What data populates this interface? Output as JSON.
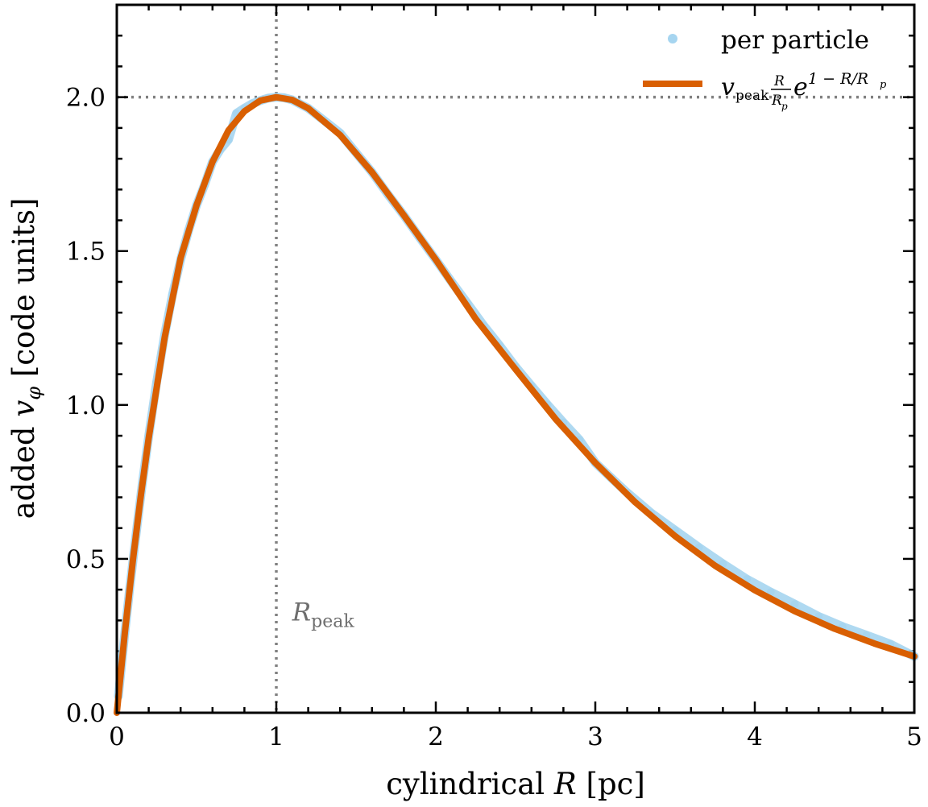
{
  "chart_data": {
    "type": "line",
    "title": "",
    "xlabel": "cylindrical R [pc]",
    "ylabel": "added v_φ [code units]",
    "xlim": [
      0,
      5
    ],
    "ylim": [
      0,
      2.3
    ],
    "x_ticks": [
      0,
      1,
      2,
      3,
      4,
      5
    ],
    "x_tick_labels": [
      "0",
      "1",
      "2",
      "3",
      "4",
      "5"
    ],
    "y_ticks": [
      0.0,
      0.5,
      1.0,
      1.5,
      2.0
    ],
    "y_tick_labels": [
      "0.0",
      "0.5",
      "1.0",
      "1.5",
      "2.0"
    ],
    "grid": false,
    "legend_position": "top-right",
    "model": {
      "v_peak": 2.0,
      "R_peak": 1.0
    },
    "series": [
      {
        "name": "per particle",
        "style": "scatter",
        "color": "#a6d5f0",
        "x": [
          0.01,
          0.03,
          0.05,
          0.08,
          0.12,
          0.16,
          0.2,
          0.25,
          0.3,
          0.35,
          0.4,
          0.45,
          0.5,
          0.55,
          0.6,
          0.65,
          0.7,
          0.75,
          0.8,
          0.85,
          0.9,
          0.95,
          1.0,
          1.05,
          1.1,
          1.2,
          1.3,
          1.4,
          1.5,
          1.6,
          1.7,
          1.8,
          1.9,
          2.0,
          2.1,
          2.2,
          2.3,
          2.4,
          2.5,
          2.6,
          2.7,
          2.8,
          2.9,
          3.0,
          3.1,
          3.2,
          3.35,
          3.5,
          3.65,
          3.8,
          3.95,
          4.1,
          4.25,
          4.4,
          4.55,
          4.7,
          4.85,
          5.0
        ],
        "y": [
          0.054,
          0.157,
          0.258,
          0.4,
          0.577,
          0.745,
          0.899,
          1.075,
          1.228,
          1.36,
          1.472,
          1.567,
          1.649,
          1.715,
          1.79,
          1.831,
          1.862,
          1.947,
          1.964,
          1.979,
          1.989,
          1.997,
          2.0,
          1.998,
          1.991,
          1.964,
          1.924,
          1.883,
          1.819,
          1.756,
          1.684,
          1.616,
          1.543,
          1.472,
          1.399,
          1.329,
          1.258,
          1.193,
          1.124,
          1.062,
          1.001,
          0.943,
          0.887,
          0.812,
          0.763,
          0.715,
          0.649,
          0.593,
          0.537,
          0.484,
          0.434,
          0.392,
          0.353,
          0.313,
          0.28,
          0.252,
          0.223,
          0.183
        ]
      },
      {
        "name": "v_peak (R/R_p) e^(1 − R/R_p)",
        "style": "line",
        "color": "#d95f02",
        "x": [
          0,
          0.05,
          0.1,
          0.15,
          0.2,
          0.3,
          0.4,
          0.5,
          0.6,
          0.7,
          0.8,
          0.9,
          1.0,
          1.1,
          1.2,
          1.4,
          1.6,
          1.8,
          2.0,
          2.25,
          2.5,
          2.75,
          3.0,
          3.25,
          3.5,
          3.75,
          4.0,
          4.25,
          4.5,
          4.75,
          5.0
        ],
        "y": [
          0.0,
          0.258,
          0.492,
          0.703,
          0.893,
          1.219,
          1.477,
          1.649,
          1.79,
          1.892,
          1.954,
          1.989,
          2.0,
          1.991,
          1.964,
          1.877,
          1.756,
          1.616,
          1.472,
          1.28,
          1.116,
          0.955,
          0.812,
          0.684,
          0.574,
          0.478,
          0.398,
          0.33,
          0.273,
          0.225,
          0.183
        ]
      }
    ],
    "reference_lines": [
      {
        "orientation": "vertical",
        "value": 1.0,
        "style": "dotted",
        "color": "#808080"
      },
      {
        "orientation": "horizontal",
        "value": 2.0,
        "style": "dotted",
        "color": "#808080"
      }
    ],
    "annotations": [
      {
        "text": "R",
        "subscript": "peak",
        "x": 1.1,
        "y": 0.3,
        "color": "#6e6e6e"
      }
    ]
  },
  "labels": {
    "x_prefix": "cylindrical ",
    "x_symbol": "R",
    "x_suffix": " [pc]",
    "y_prefix": "added ",
    "y_symbol": "v",
    "y_subscript": "φ",
    "y_suffix": " [code units]",
    "legend_scatter": "per particle",
    "legend_line_v": "v",
    "legend_line_v_sub": "peak",
    "legend_line_num": "R",
    "legend_line_den": "R",
    "legend_line_den_sub": "p",
    "legend_line_e": "e",
    "legend_line_exp": "1 − R/R",
    "legend_line_exp_sub": "p",
    "annot_main": "R",
    "annot_sub": "peak"
  }
}
